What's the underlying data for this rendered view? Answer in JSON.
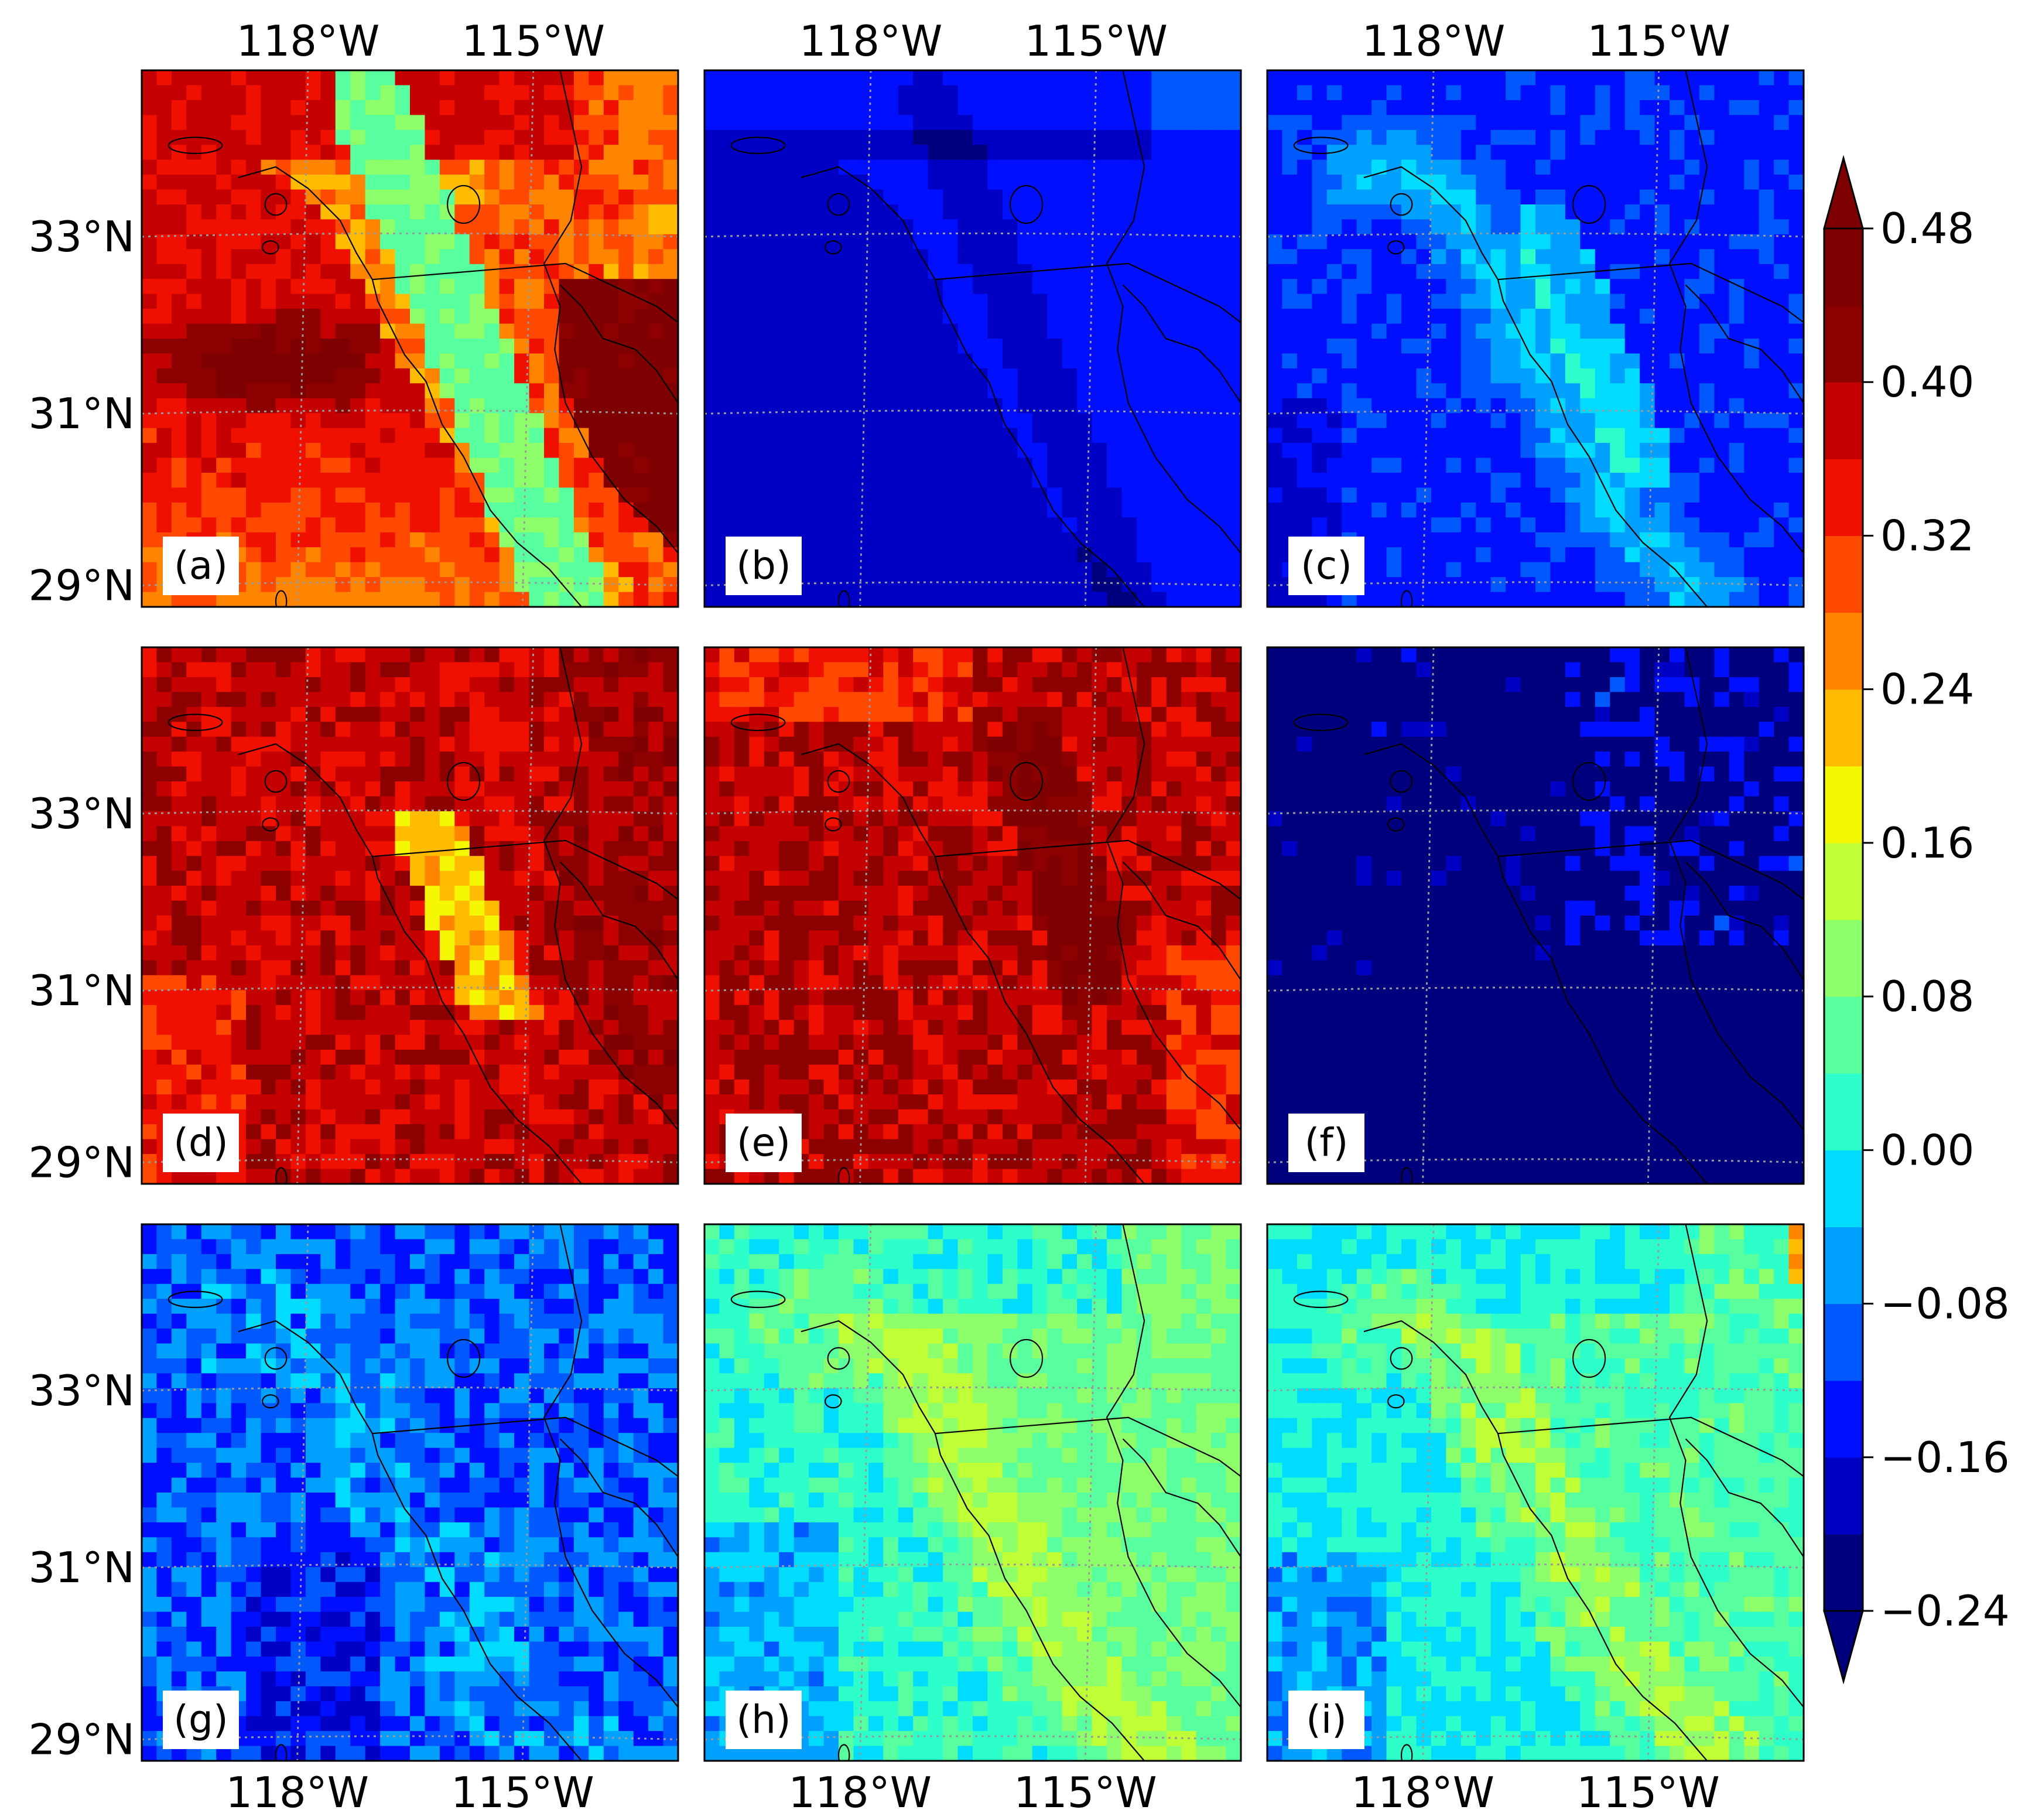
{
  "panels": [
    {
      "label": "(a)",
      "pattern": "a"
    },
    {
      "label": "(b)",
      "pattern": "b"
    },
    {
      "label": "(c)",
      "pattern": "c"
    },
    {
      "label": "(d)",
      "pattern": "d"
    },
    {
      "label": "(e)",
      "pattern": "e"
    },
    {
      "label": "(f)",
      "pattern": "f"
    },
    {
      "label": "(g)",
      "pattern": "g"
    },
    {
      "label": "(h)",
      "pattern": "h"
    },
    {
      "label": "(i)",
      "pattern": "i"
    }
  ],
  "axes": {
    "lon_labels": [
      "118°W",
      "115°W"
    ],
    "lat_labels": [
      "33°N",
      "31°N",
      "29°N"
    ]
  },
  "colorbar": {
    "tick_labels": [
      "0.48",
      "0.40",
      "0.32",
      "0.24",
      "0.16",
      "0.08",
      "0.00",
      "−0.08",
      "−0.16",
      "−0.24"
    ],
    "levels": [
      -0.24,
      -0.2,
      -0.16,
      -0.12,
      -0.08,
      -0.04,
      0.0,
      0.04,
      0.08,
      0.12,
      0.16,
      0.2,
      0.24,
      0.28,
      0.32,
      0.36,
      0.4,
      0.44,
      0.48
    ],
    "colors": [
      "#00007f",
      "#0000c4",
      "#0010ff",
      "#0058ff",
      "#00a0ff",
      "#00dcfe",
      "#2cffca",
      "#58ff9e",
      "#8cff6a",
      "#c0ff36",
      "#f4f802",
      "#ffbc00",
      "#ff8400",
      "#ff4800",
      "#f01000",
      "#c40000",
      "#8c0000",
      "#7f0000"
    ]
  }
}
